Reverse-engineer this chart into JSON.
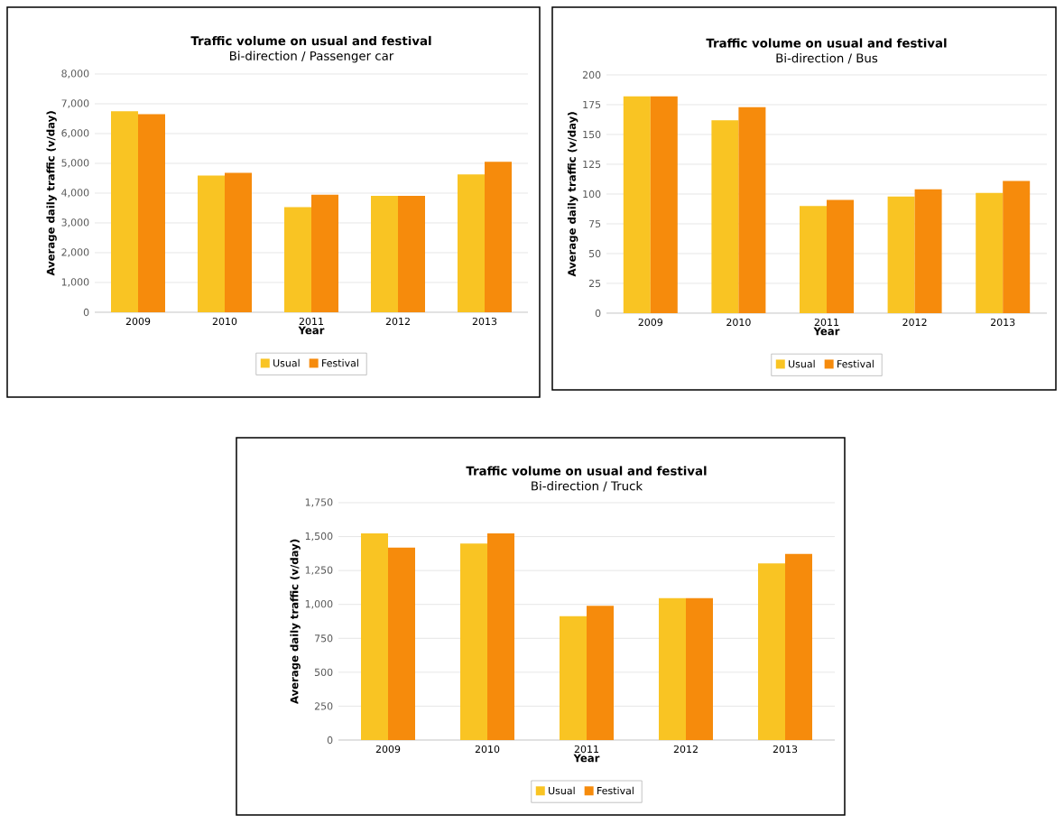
{
  "chart_data": [
    {
      "type": "bar",
      "title": "Traffic volume on usual and festival",
      "subtitle": "Bi-direction / Passenger car",
      "xlabel": "Year",
      "ylabel": "Average daily traffic (v/day)",
      "categories": [
        "2009",
        "2010",
        "2011",
        "2012",
        "2013"
      ],
      "series": [
        {
          "name": "Usual",
          "color": "#f9c423",
          "values": [
            6750,
            4590,
            3530,
            3910,
            4630
          ]
        },
        {
          "name": "Festival",
          "color": "#f68b0c",
          "values": [
            6650,
            4680,
            3950,
            3910,
            5050
          ]
        }
      ],
      "ylim": [
        0,
        8000
      ],
      "yticks": [
        0,
        {
          "value": 1000,
          "label": "1,000"
        },
        {
          "value": 2000,
          "label": "2,000"
        },
        {
          "value": 3000,
          "label": "3,000"
        },
        {
          "value": 4000,
          "label": "4,000"
        },
        {
          "value": 5000,
          "label": "5,000"
        },
        {
          "value": 6000,
          "label": "6,000"
        },
        {
          "value": 7000,
          "label": "7,000"
        },
        {
          "value": 8000,
          "label": "8,000"
        }
      ],
      "grid": "y",
      "legend": "bottom"
    },
    {
      "type": "bar",
      "title": "Traffic volume on usual and festival",
      "subtitle": "Bi-direction / Bus",
      "xlabel": "Year",
      "ylabel": "Average daily traffic (v/day)",
      "categories": [
        "2009",
        "2010",
        "2011",
        "2012",
        "2013"
      ],
      "series": [
        {
          "name": "Usual",
          "color": "#f9c423",
          "values": [
            182,
            162,
            90,
            98,
            101
          ]
        },
        {
          "name": "Festival",
          "color": "#f68b0c",
          "values": [
            182,
            173,
            95,
            104,
            111
          ]
        }
      ],
      "ylim": [
        0,
        200
      ],
      "yticks": [
        0,
        25,
        50,
        75,
        100,
        125,
        150,
        175,
        200
      ],
      "grid": "y",
      "legend": "bottom"
    },
    {
      "type": "bar",
      "title": "Traffic volume on usual and festival",
      "subtitle": "Bi-direction / Truck",
      "xlabel": "Year",
      "ylabel": "Average daily traffic (v/day)",
      "categories": [
        "2009",
        "2010",
        "2011",
        "2012",
        "2013"
      ],
      "series": [
        {
          "name": "Usual",
          "color": "#f9c423",
          "values": [
            1523,
            1449,
            913,
            1047,
            1302
          ]
        },
        {
          "name": "Festival",
          "color": "#f68b0c",
          "values": [
            1419,
            1523,
            990,
            1047,
            1373
          ]
        }
      ],
      "ylim": [
        0,
        1750
      ],
      "yticks": [
        0,
        250,
        500,
        750,
        {
          "value": 1000,
          "label": "1,000"
        },
        {
          "value": 1250,
          "label": "1,250"
        },
        {
          "value": 1500,
          "label": "1,500"
        },
        {
          "value": 1750,
          "label": "1,750"
        }
      ],
      "grid": "y",
      "legend": "bottom"
    }
  ]
}
